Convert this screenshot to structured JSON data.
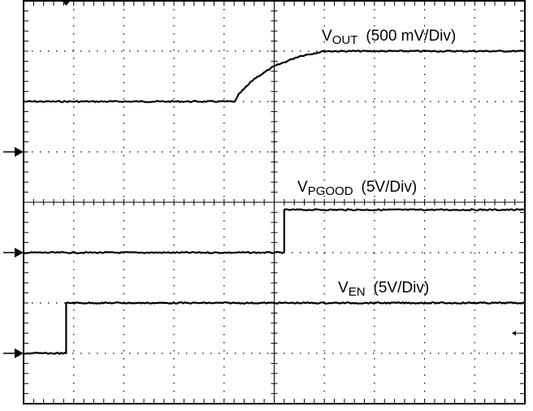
{
  "chart_data": {
    "type": "line",
    "title": "",
    "xlabel": "",
    "ylabel": "",
    "grid": true,
    "x_divisions": 10,
    "y_divisions": 8,
    "xlim": [
      0,
      10
    ],
    "ylim": [
      0,
      8
    ],
    "series": [
      {
        "name": "V_OUT (500 mV/Div)",
        "label_main": "V",
        "label_sub": "OUT",
        "label_scale": "(500 mV/Div)",
        "ground_level_div": 5,
        "x": [
          0,
          4.22,
          4.3,
          4.6,
          5.0,
          5.5,
          6.0,
          6.4,
          7.0,
          10
        ],
        "y": [
          6.0,
          6.0,
          6.15,
          6.45,
          6.7,
          6.9,
          7.0,
          7.0,
          7.0,
          7.0
        ]
      },
      {
        "name": "V_PGOOD (5V/Div)",
        "label_main": "V",
        "label_sub": "PGOOD",
        "label_scale": "(5V/Div)",
        "ground_level_div": 3,
        "x": [
          0,
          5.2,
          5.2,
          10
        ],
        "y": [
          3.0,
          3.0,
          3.85,
          3.85
        ]
      },
      {
        "name": "V_EN (5V/Div)",
        "label_main": "V",
        "label_sub": "EN",
        "label_scale": "(5V/Div)",
        "ground_level_div": 1,
        "x": [
          0,
          0.85,
          0.85,
          10
        ],
        "y": [
          1.0,
          1.0,
          2.0,
          2.0
        ]
      }
    ]
  }
}
